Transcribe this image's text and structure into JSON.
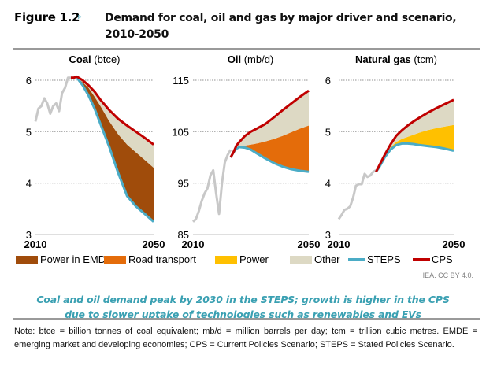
{
  "figure": {
    "label": "Figure 1.2",
    "arrow": "▹",
    "title": "Demand for coal, oil and gas by major driver and scenario, 2010-2050"
  },
  "colors": {
    "historical": "#c8c8c8",
    "power_in_emde": "#a04c0b",
    "road_transport": "#e46c0a",
    "power": "#ffc000",
    "other": "#ddd9c4",
    "steps": "#4bacc6",
    "cps": "#c00000",
    "grid": "#a6a6a6",
    "caption": "#3aa0b2"
  },
  "legend": {
    "items": [
      {
        "key": "power_in_emde",
        "label": "Power in EMDE",
        "kind": "area"
      },
      {
        "key": "road_transport",
        "label": "Road transport",
        "kind": "area"
      },
      {
        "key": "power",
        "label": "Power",
        "kind": "area"
      },
      {
        "key": "other",
        "label": "Other",
        "kind": "area"
      },
      {
        "key": "steps",
        "label": "STEPS",
        "kind": "line"
      },
      {
        "key": "cps",
        "label": "CPS",
        "kind": "line"
      }
    ]
  },
  "credit": "IEA. CC BY 4.0.",
  "caption": {
    "line1": "Coal and oil demand peak by 2030 in the STEPS; growth is higher in the CPS",
    "line2": "due to slower uptake of technologies such as renewables and EVs"
  },
  "note": "Note: btce = billion tonnes of coal equivalent; mb/d = million barrels per day; tcm = trillion cubic metres. EMDE = emerging market and developing economies; CPS = Current Policies Scenario; STEPS = Stated Policies Scenario.",
  "chart_data": [
    {
      "type": "area",
      "id": "coal",
      "title": "Coal",
      "unit": "(btce)",
      "xlim": [
        2010,
        2050
      ],
      "xticks": [
        "2010",
        "2050"
      ],
      "ylim": [
        3,
        6
      ],
      "yticks": [
        3,
        4,
        5,
        6
      ],
      "grid": true,
      "historical": {
        "x": [
          2010,
          2011,
          2012,
          2013,
          2014,
          2015,
          2016,
          2017,
          2018,
          2019,
          2020,
          2021,
          2022,
          2023
        ],
        "y": [
          5.2,
          5.45,
          5.5,
          5.65,
          5.55,
          5.35,
          5.5,
          5.55,
          5.4,
          5.75,
          5.85,
          6.05,
          6.05,
          6.05
        ]
      },
      "cps": {
        "x": [
          2022,
          2023,
          2024,
          2026,
          2028,
          2030,
          2032,
          2035,
          2038,
          2041,
          2044,
          2047,
          2050
        ],
        "y": [
          6.05,
          6.05,
          6.07,
          6.0,
          5.9,
          5.78,
          5.62,
          5.42,
          5.25,
          5.12,
          5.0,
          4.88,
          4.75
        ]
      },
      "steps": {
        "x": [
          2023,
          2024,
          2026,
          2028,
          2030,
          2032,
          2035,
          2038,
          2041,
          2044,
          2047,
          2050
        ],
        "y": [
          6.07,
          6.05,
          5.9,
          5.7,
          5.45,
          5.15,
          4.7,
          4.2,
          3.75,
          3.55,
          3.4,
          3.25
        ]
      },
      "stack_boundaries": {
        "x": [
          2023,
          2024,
          2026,
          2028,
          2030,
          2032,
          2035,
          2038,
          2041,
          2044,
          2047,
          2050
        ],
        "power_in_emde_top": [
          6.07,
          6.05,
          5.96,
          5.85,
          5.68,
          5.5,
          5.2,
          4.95,
          4.75,
          4.6,
          4.45,
          4.3
        ]
      },
      "stack_order": [
        "power_in_emde",
        "other"
      ]
    },
    {
      "type": "area",
      "id": "oil",
      "title": "Oil",
      "unit": "(mb/d)",
      "xlim": [
        2010,
        2050
      ],
      "xticks": [
        "2010",
        "2050"
      ],
      "ylim": [
        85,
        115
      ],
      "yticks": [
        85,
        95,
        105,
        115
      ],
      "grid": true,
      "historical": {
        "x": [
          2010,
          2011,
          2012,
          2013,
          2014,
          2015,
          2016,
          2017,
          2018,
          2019,
          2020,
          2021,
          2022,
          2023
        ],
        "y": [
          87.5,
          88,
          89.5,
          91.5,
          93,
          94,
          96.5,
          97.5,
          93,
          89,
          95,
          99,
          100.5,
          101.5
        ]
      },
      "cps": {
        "x": [
          2023,
          2024,
          2025,
          2026,
          2028,
          2030,
          2032,
          2035,
          2038,
          2041,
          2044,
          2047,
          2050
        ],
        "y": [
          100,
          101,
          102.3,
          103,
          104.2,
          105,
          105.6,
          106.5,
          107.8,
          109.2,
          110.5,
          111.8,
          113
        ]
      },
      "steps": {
        "x": [
          2023,
          2024,
          2025,
          2026,
          2028,
          2030,
          2032,
          2035,
          2038,
          2041,
          2044,
          2047,
          2050
        ],
        "y": [
          100,
          101,
          101.7,
          102,
          101.9,
          101.5,
          100.8,
          99.8,
          98.9,
          98.2,
          97.7,
          97.4,
          97.2
        ]
      },
      "stack_boundaries": {
        "x": [
          2023,
          2024,
          2025,
          2026,
          2028,
          2030,
          2032,
          2035,
          2038,
          2041,
          2044,
          2047,
          2050
        ],
        "road_transport_top": [
          100,
          101,
          101.8,
          102.1,
          102.3,
          102.5,
          102.7,
          103.1,
          103.6,
          104.2,
          104.9,
          105.6,
          106.2
        ]
      },
      "stack_order": [
        "road_transport",
        "other"
      ]
    },
    {
      "type": "area",
      "id": "gas",
      "title": "Natural gas",
      "unit": "(tcm)",
      "xlim": [
        2010,
        2050
      ],
      "xticks": [
        "2010",
        "2050"
      ],
      "ylim": [
        3,
        6
      ],
      "yticks": [
        3,
        4,
        5,
        6
      ],
      "grid": true,
      "historical": {
        "x": [
          2010,
          2011,
          2012,
          2013,
          2014,
          2015,
          2016,
          2017,
          2018,
          2019,
          2020,
          2021,
          2022,
          2023
        ],
        "y": [
          3.3,
          3.38,
          3.48,
          3.5,
          3.55,
          3.72,
          3.95,
          3.98,
          3.98,
          4.18,
          4.12,
          4.15,
          4.22,
          4.25
        ]
      },
      "cps": {
        "x": [
          2023,
          2024,
          2026,
          2028,
          2030,
          2032,
          2034,
          2036,
          2038,
          2041,
          2044,
          2047,
          2050
        ],
        "y": [
          4.22,
          4.33,
          4.55,
          4.75,
          4.92,
          5.03,
          5.12,
          5.2,
          5.27,
          5.37,
          5.46,
          5.54,
          5.62
        ]
      },
      "steps": {
        "x": [
          2023,
          2024,
          2026,
          2028,
          2030,
          2032,
          2034,
          2036,
          2038,
          2041,
          2044,
          2047,
          2050
        ],
        "y": [
          4.22,
          4.3,
          4.5,
          4.65,
          4.74,
          4.77,
          4.77,
          4.76,
          4.74,
          4.72,
          4.7,
          4.67,
          4.63
        ]
      },
      "stack_boundaries": {
        "x": [
          2023,
          2024,
          2026,
          2028,
          2030,
          2032,
          2034,
          2036,
          2038,
          2041,
          2044,
          2047,
          2050
        ],
        "power_top": [
          4.22,
          4.31,
          4.52,
          4.69,
          4.8,
          4.86,
          4.9,
          4.94,
          4.98,
          5.03,
          5.07,
          5.1,
          5.13
        ]
      },
      "stack_order": [
        "power",
        "other"
      ]
    }
  ]
}
